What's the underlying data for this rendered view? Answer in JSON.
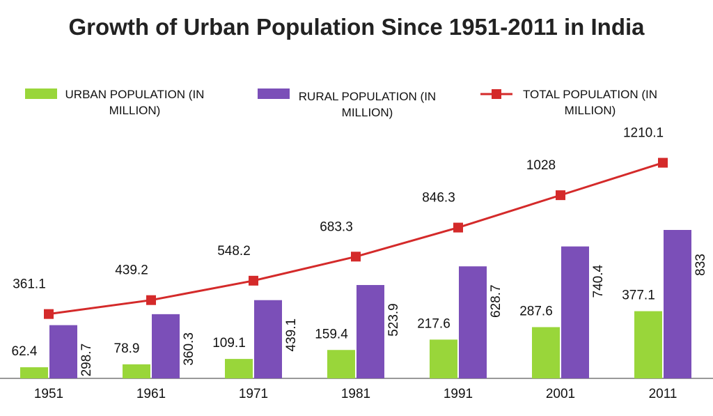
{
  "chart_data": {
    "type": "bar",
    "title": "Growth of Urban Population Since 1951-2011 in India",
    "categories": [
      "1951",
      "1961",
      "1971",
      "1981",
      "1991",
      "2001",
      "2011"
    ],
    "series": [
      {
        "name": "URBAN POPULATION (IN MILLION)",
        "color": "#99d63a",
        "type": "bar",
        "values": [
          62.4,
          78.9,
          109.1,
          159.4,
          217.6,
          287.6,
          377.1
        ]
      },
      {
        "name": "RURAL POPULATION (IN MILLION)",
        "color": "#7b4fb8",
        "type": "bar",
        "values": [
          298.7,
          360.3,
          439.1,
          523.9,
          628.7,
          740.4,
          833
        ]
      },
      {
        "name": "TOTAL POPULATION (IN MILLION)",
        "color": "#d42a2a",
        "type": "line",
        "values": [
          361.1,
          439.2,
          548.2,
          683.3,
          846.3,
          1028,
          1210.1
        ]
      }
    ],
    "ylim": [
      0,
      1400
    ]
  }
}
